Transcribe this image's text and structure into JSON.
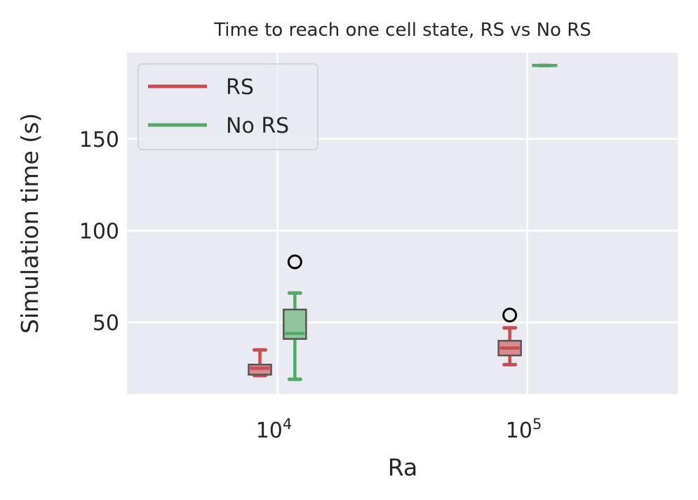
{
  "chart_data": {
    "type": "box",
    "title": "Time to reach one cell state, RS vs No RS",
    "xlabel": "Ra",
    "ylabel": "Simulation time (s)",
    "x_scale": "log",
    "xlim": [
      2500,
      400000
    ],
    "ylim": [
      11,
      197
    ],
    "x_ticks": [
      {
        "value": 10000,
        "base": "10",
        "exp": "4"
      },
      {
        "value": 100000,
        "base": "10",
        "exp": "5"
      }
    ],
    "y_ticks": [
      50,
      100,
      150
    ],
    "grid": true,
    "legend_position": "top-left",
    "series": [
      {
        "name": "RS",
        "color": "#c44e52",
        "boxes": [
          {
            "x": 10000,
            "whisker_low": 21,
            "q1": 21.5,
            "median": 25,
            "q3": 27,
            "whisker_high": 35,
            "outliers": []
          },
          {
            "x": 100000,
            "whisker_low": 27,
            "q1": 32,
            "median": 36,
            "q3": 40,
            "whisker_high": 47,
            "outliers": [
              54
            ]
          }
        ]
      },
      {
        "name": "No RS",
        "color": "#55a868",
        "boxes": [
          {
            "x": 10000,
            "whisker_low": 19,
            "q1": 41,
            "median": 44,
            "q3": 57,
            "whisker_high": 66,
            "outliers": [
              83
            ]
          },
          {
            "x": 100000,
            "whisker_low": 190,
            "q1": 190,
            "median": 190,
            "q3": 190,
            "whisker_high": 190,
            "outliers": []
          }
        ]
      }
    ]
  }
}
